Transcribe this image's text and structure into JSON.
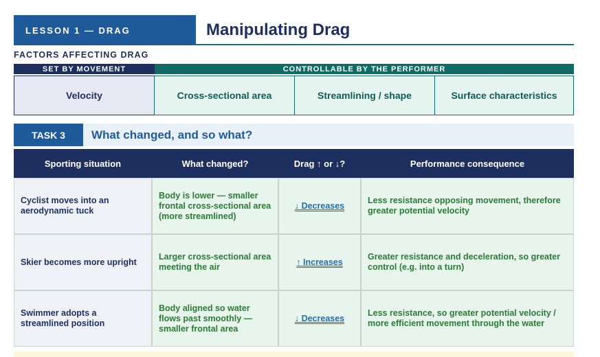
{
  "header": {
    "lesson": "LESSON 1 — DRAG",
    "title": "Manipulating Drag"
  },
  "factors": {
    "heading": "FACTORS AFFECTING DRAG",
    "groups": [
      "SET BY MOVEMENT",
      "CONTROLLABLE BY THE PERFORMER"
    ],
    "items": [
      "Velocity",
      "Cross-sectional area",
      "Streamlining / shape",
      "Surface characteristics"
    ]
  },
  "task": {
    "label": "TASK 3",
    "title": "What changed, and so what?"
  },
  "table": {
    "columns": [
      "Sporting situation",
      "What changed?",
      "Drag ↑ or ↓?",
      "Performance consequence"
    ],
    "rows": [
      [
        "Cyclist moves into an aerodynamic tuck",
        "Body is lower — smaller frontal cross-sectional area (more streamlined)",
        "↓ Decreases",
        "Less resistance opposing movement, therefore greater potential velocity"
      ],
      [
        "Skier becomes more upright",
        "Larger cross-sectional area meeting the air",
        "↑ Increases",
        "Greater resistance and deceleration, so greater control (e.g. into a turn)"
      ],
      [
        "Swimmer adopts a streamlined position",
        "Body aligned so water flows past smoothly — smaller frontal area",
        "↓ Decreases",
        "Less resistance, so greater potential velocity / more efficient movement through the water"
      ]
    ]
  }
}
